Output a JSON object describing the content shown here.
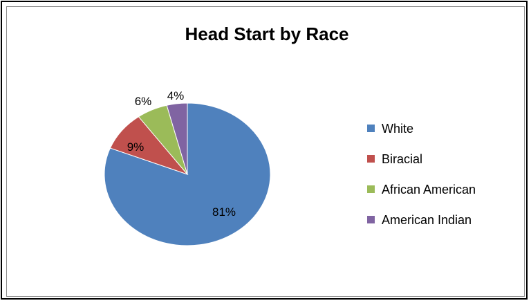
{
  "chart_data": {
    "type": "pie",
    "title": "Head Start by Race",
    "legend_position": "right",
    "slices": [
      {
        "name": "White",
        "value": 81,
        "label": "81%",
        "color": "#4f81bd"
      },
      {
        "name": "Biracial",
        "value": 9,
        "label": "9%",
        "color": "#c0504d"
      },
      {
        "name": "African American",
        "value": 6,
        "label": "6%",
        "color": "#9bbb59"
      },
      {
        "name": "American Indian",
        "value": 4,
        "label": "4%",
        "color": "#8064a2"
      }
    ]
  }
}
